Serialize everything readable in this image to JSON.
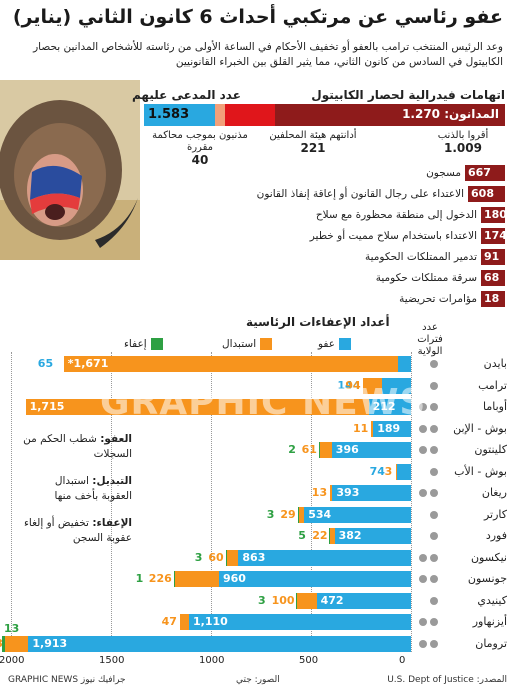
{
  "title": "عفو رئاسي عن مرتكبي أحداث 6 كانون الثاني (يناير)",
  "subtitle": "وعد الرئيس المنتخب ترامب بالعفو أو تخفيف الأحكام في الساعة الأولى من رئاسته للأشخاص المدانين بحصار الكابيتول في السادس من كانون الثاني، مما يثير القلق بين الخبراء القانونيين",
  "top_section": {
    "header_right": "اتهامات فيدرالية لحصار الكابيتول",
    "header_left": "عدد المدعى عليهم",
    "convicted_label": "المدانون: 1.270",
    "total_defendants": "1.583",
    "segments": [
      {
        "label": "أقروا بالذنب",
        "value": "1.009",
        "color": "#8e1b1b"
      },
      {
        "label": "أدانتهم هيئة المحلفين",
        "value": "221",
        "color": "#e0161b"
      },
      {
        "label": "مذنبون بموجب محاكمة مقررة",
        "value": "40",
        "color": "#f2a07a"
      },
      {
        "label": "",
        "value": "",
        "color": "#29a8e0"
      }
    ],
    "segment_values": {
      "pleaded": 1009,
      "jury": 221,
      "bench": 40,
      "other": 313
    }
  },
  "charges": [
    {
      "label": "مسجون",
      "value": "667"
    },
    {
      "label": "الاعتداء على رجال القانون أو إعاقة إنفاذ القانون",
      "value": "608"
    },
    {
      "label": "الدخول إلى منطقة محظورة مع سلاح",
      "value": "180"
    },
    {
      "label": "الاعتداء باستخدام سلاح مميت أو خطير",
      "value": "174"
    },
    {
      "label": "تدمير الممتلكات الحكومية",
      "value": "91"
    },
    {
      "label": "سرقة ممتلكات حكومية",
      "value": "68"
    },
    {
      "label": "مؤامرات تحريضية",
      "value": "18"
    }
  ],
  "colors": {
    "pardon": "#29a8e0",
    "commutation": "#f7941d",
    "remission": "#2ea043",
    "dark_red": "#8e1b1b"
  },
  "chart_data": {
    "type": "bar",
    "title": "أعداد الإعفاءات الرئاسية",
    "term_header": "عدد فترات الولاية",
    "legend": [
      {
        "name": "عفو",
        "color": "#29a8e0"
      },
      {
        "name": "استبدال",
        "color": "#f7941d"
      },
      {
        "name": "إعفاء",
        "color": "#2ea043"
      }
    ],
    "xlim": [
      0,
      2100
    ],
    "x_ticks": [
      "0",
      "500",
      "1000",
      "1500",
      "2000"
    ],
    "presidents": [
      {
        "name": "بايدن",
        "terms": 1,
        "pardon": 65,
        "pardon_label": "65",
        "commutation": 1671,
        "commutation_label": "*1,671",
        "remission": 0,
        "remission_label": ""
      },
      {
        "name": "ترامب",
        "terms": 1,
        "pardon": 144,
        "pardon_label": "144",
        "commutation": 94,
        "commutation_label": "94",
        "remission": 0,
        "remission_label": ""
      },
      {
        "name": "أوباما",
        "terms": 2,
        "pardon": 212,
        "pardon_label": "212",
        "commutation": 1715,
        "commutation_label": "1,715",
        "remission": 0,
        "remission_label": ""
      },
      {
        "name": "بوش - الإبن",
        "terms": 2,
        "pardon": 189,
        "pardon_label": "189",
        "commutation": 11,
        "commutation_label": "11",
        "remission": 0,
        "remission_label": ""
      },
      {
        "name": "كلينتون",
        "terms": 2,
        "pardon": 396,
        "pardon_label": "396",
        "commutation": 61,
        "commutation_label": "61",
        "remission": 2,
        "remission_label": "2"
      },
      {
        "name": "بوش - الأب",
        "terms": 1,
        "pardon": 74,
        "pardon_label": "74",
        "commutation": 3,
        "commutation_label": "3",
        "remission": 0,
        "remission_label": ""
      },
      {
        "name": "ريغان",
        "terms": 2,
        "pardon": 393,
        "pardon_label": "393",
        "commutation": 13,
        "commutation_label": "13",
        "remission": 0,
        "remission_label": ""
      },
      {
        "name": "كارتر",
        "terms": 1,
        "pardon": 534,
        "pardon_label": "534",
        "commutation": 29,
        "commutation_label": "29",
        "remission": 3,
        "remission_label": "3"
      },
      {
        "name": "فورد",
        "terms": 1,
        "pardon": 382,
        "pardon_label": "382",
        "commutation": 22,
        "commutation_label": "22",
        "remission": 5,
        "remission_label": "5"
      },
      {
        "name": "نيكسون",
        "terms": 2,
        "pardon": 863,
        "pardon_label": "863",
        "commutation": 60,
        "commutation_label": "60",
        "remission": 3,
        "remission_label": "3"
      },
      {
        "name": "جونسون",
        "terms": 2,
        "pardon": 960,
        "pardon_label": "960",
        "commutation": 226,
        "commutation_label": "226",
        "remission": 1,
        "remission_label": "1"
      },
      {
        "name": "كينيدي",
        "terms": 1,
        "pardon": 472,
        "pardon_label": "472",
        "commutation": 100,
        "commutation_label": "100",
        "remission": 3,
        "remission_label": "3"
      },
      {
        "name": "أيزنهاور",
        "terms": 2,
        "pardon": 1110,
        "pardon_label": "1,110",
        "commutation": 47,
        "commutation_label": "47",
        "remission": 0,
        "remission_label": ""
      },
      {
        "name": "ترومان",
        "terms": 2,
        "pardon": 1913,
        "pardon_label": "1,913",
        "commutation": 118,
        "commutation_label": "118",
        "remission": 13,
        "remission_label": "13"
      }
    ]
  },
  "notes": [
    {
      "term": "العفو:",
      "text": "شطب الحكم من السجلات"
    },
    {
      "term": "التبديل:",
      "text": "استبدال العقوبة بأخف منها"
    },
    {
      "term": "الإعفاء:",
      "text": "تخفيض أو إلغاء عقوبة السجن"
    }
  ],
  "footer": {
    "source": "المصدر: U.S. Dept of Justice",
    "photo": "الصور: جتي",
    "credit": "GRAPHIC NEWS جرافيك نيوز"
  },
  "watermark": "GRAPHIC NEWS"
}
